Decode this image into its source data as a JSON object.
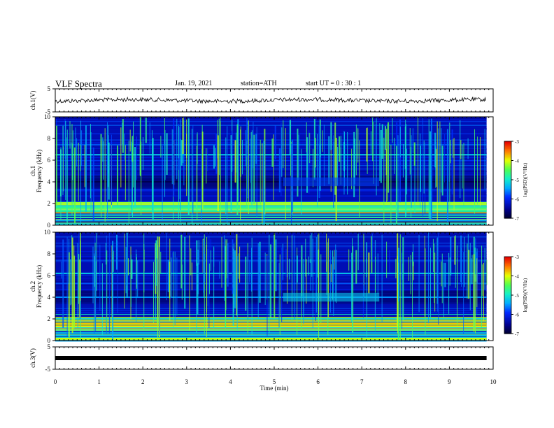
{
  "header": {
    "title": "VLF Spectra",
    "date": "Jan. 19, 2021",
    "station": "station=ATH",
    "start_ut": "start UT =  0 : 30 : 1"
  },
  "colorbar": {
    "label": "log(PSD)(V²/Hz)",
    "min": -7,
    "max": -3,
    "ticks": [
      "-3",
      "-4",
      "-5",
      "-6",
      "-7"
    ]
  },
  "chart_data": [
    {
      "type": "line",
      "panel": "ch1-voltage",
      "ylabel": "ch.1(V)",
      "ylim": [
        -5,
        5
      ],
      "yticks": [
        "5",
        "-5"
      ],
      "xlim": [
        0,
        10
      ],
      "series": [
        {
          "values_note_mean": 0.0,
          "x": [
            0,
            9.85
          ],
          "y": [
            0,
            0
          ]
        }
      ]
    },
    {
      "type": "heatmap",
      "panel": "ch1-spectrogram",
      "ylabel": "ch.1\nFrequency (kHz)",
      "ylim": [
        0,
        10
      ],
      "yticks": [
        "0",
        "2",
        "4",
        "6",
        "8",
        "10"
      ],
      "xlim": [
        0,
        10
      ],
      "data_xmax": 9.85,
      "zlim": [
        -7,
        -3
      ],
      "features": [
        {
          "freq_khz": 6.5,
          "psd": -5.2
        },
        {
          "freq_khz": 4.0,
          "psd": -6.8
        },
        {
          "freq_khz": 2.0,
          "psd": -5.0
        },
        {
          "freq_khz": 0.5,
          "psd": -4.0
        }
      ]
    },
    {
      "type": "heatmap",
      "panel": "ch2-spectrogram",
      "ylabel": "ch.2\nFrequency (kHz)",
      "ylim": [
        0,
        10
      ],
      "yticks": [
        "0",
        "2",
        "4",
        "6",
        "8",
        "10"
      ],
      "xlim": [
        0,
        10
      ],
      "data_xmax": 9.85,
      "zlim": [
        -7,
        -3
      ],
      "features": [
        {
          "freq_khz": 6.2,
          "psd": -5.2
        },
        {
          "freq_khz": 4.0,
          "psd": -5.5
        },
        {
          "freq_khz": 2.0,
          "psd": -4.2
        },
        {
          "freq_khz": 0.5,
          "psd": -4.0
        }
      ]
    },
    {
      "type": "line",
      "panel": "ch3-voltage",
      "ylabel": "ch.3(V)",
      "ylim": [
        -5,
        5
      ],
      "yticks": [
        "5",
        "-5"
      ],
      "xlim": [
        0,
        10
      ],
      "xlabel": "Time (min)",
      "xticks": [
        "0",
        "1",
        "2",
        "3",
        "4",
        "5",
        "6",
        "7",
        "8",
        "9",
        "10"
      ],
      "series": [
        {
          "x": [
            0,
            9.85
          ],
          "y": [
            0,
            0
          ]
        }
      ]
    }
  ],
  "colors": {
    "background_spectrum": "#00107a",
    "noise_green": "#3cff6e"
  }
}
